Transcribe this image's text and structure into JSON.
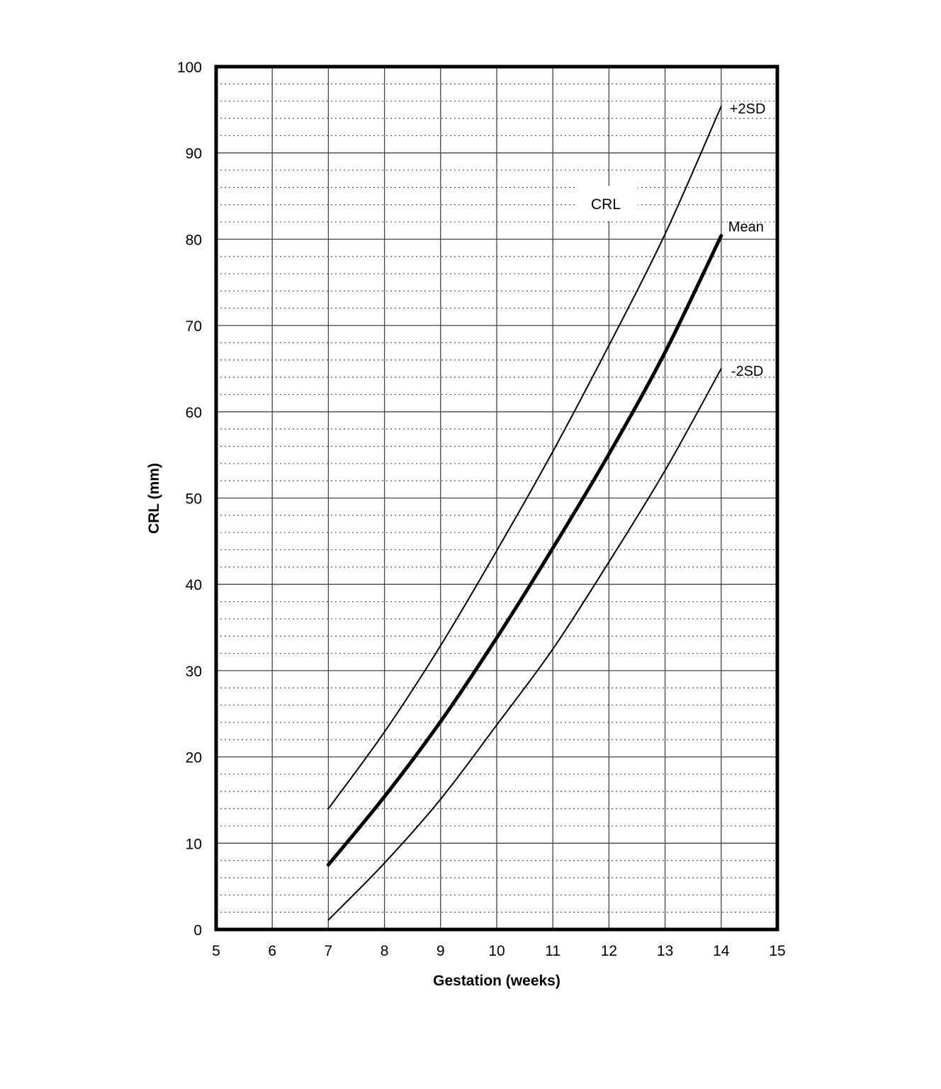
{
  "chart_data": {
    "type": "line",
    "title": "CRL",
    "xlabel": "Gestation (weeks)",
    "ylabel": "CRL (mm)",
    "xlim": [
      5,
      15
    ],
    "ylim": [
      0,
      100
    ],
    "x_ticks": [
      5,
      6,
      7,
      8,
      9,
      10,
      11,
      12,
      13,
      14,
      15
    ],
    "y_ticks": [
      0,
      10,
      20,
      30,
      40,
      50,
      60,
      70,
      80,
      90,
      100
    ],
    "grid": {
      "major_x": 1,
      "major_y": 10,
      "minor_y": 2,
      "minor_style": "dotted"
    },
    "legend": "inline labels at right end of each curve",
    "x": [
      7,
      8,
      9,
      10,
      11,
      12,
      13,
      14
    ],
    "series": [
      {
        "name": "+2SD",
        "values": [
          14.0,
          22.9,
          32.9,
          43.9,
          55.4,
          67.7,
          80.6,
          95.4
        ],
        "line_width": 2
      },
      {
        "name": "Mean",
        "values": [
          7.5,
          15.4,
          24.1,
          33.8,
          44.2,
          55.1,
          66.9,
          80.4
        ],
        "line_width": 5
      },
      {
        "name": "-2SD",
        "values": [
          1.1,
          7.7,
          15.1,
          23.7,
          32.5,
          42.6,
          53.2,
          65.0
        ],
        "line_width": 2
      }
    ]
  }
}
